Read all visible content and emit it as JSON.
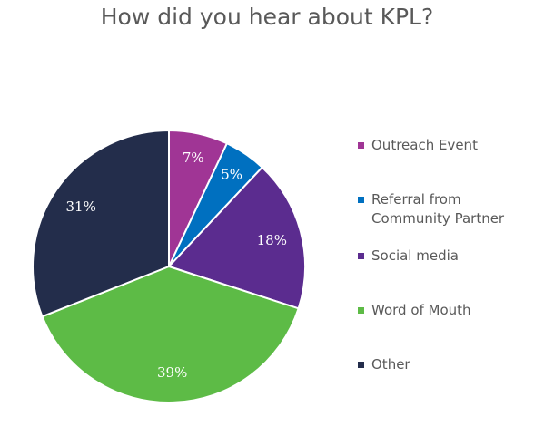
{
  "chart_data": {
    "type": "pie",
    "title": "How did you hear about KPL?",
    "labels": [
      "Outreach Event",
      "Referral from Community Partner",
      "Social media",
      "Word of Mouth",
      "Other"
    ],
    "legend_labels": [
      [
        "Outreach Event"
      ],
      [
        "Referral from",
        "Community Partner"
      ],
      [
        "Social media"
      ],
      [
        "Word of Mouth"
      ],
      [
        "Other"
      ]
    ],
    "values": [
      7,
      5,
      18,
      39,
      31
    ],
    "value_labels": [
      "7%",
      "5%",
      "18%",
      "39%",
      "31%"
    ],
    "colors": [
      "#A03595",
      "#0070C0",
      "#5B2C8F",
      "#5DBB46",
      "#232D4B"
    ],
    "start_angle_deg": 0,
    "direction": "clockwise",
    "legend": "right"
  }
}
